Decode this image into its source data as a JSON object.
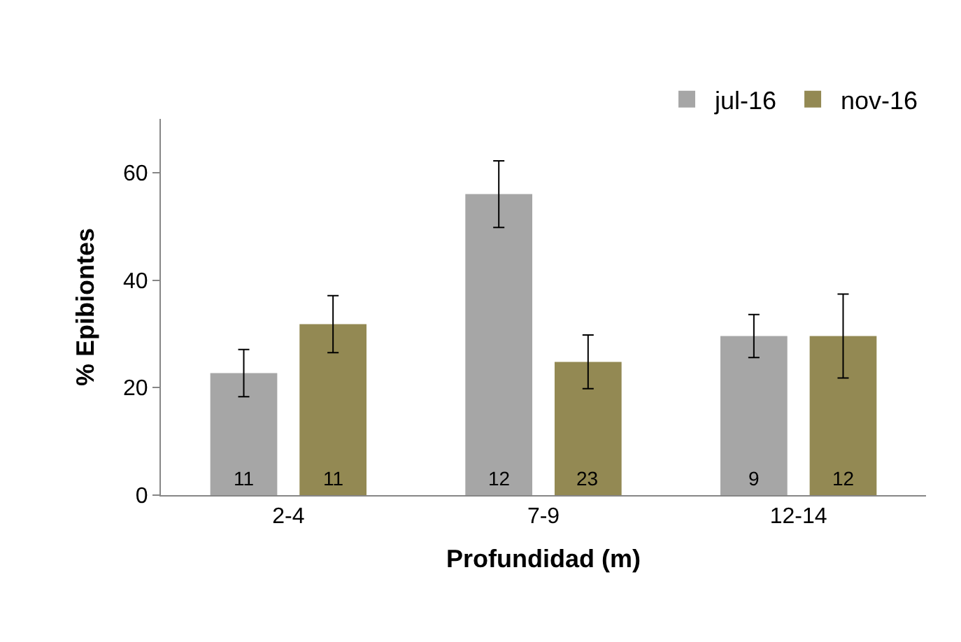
{
  "chart_data": {
    "type": "bar",
    "xlabel": "Profundidad (m)",
    "ylabel": "% Epibiontes",
    "categories": [
      "2-4",
      "7-9",
      "12-14"
    ],
    "series": [
      {
        "name": "jul-16",
        "color": "#a6a6a6",
        "values": [
          22.7,
          56,
          29.6
        ],
        "errors": [
          4.4,
          6.2,
          4
        ]
      },
      {
        "name": "nov-16",
        "color": "#938953",
        "values": [
          31.8,
          24.8,
          29.6
        ],
        "errors": [
          5.3,
          5,
          7.8
        ]
      }
    ],
    "annotations": [
      "11",
      "11",
      "12",
      "23",
      "9",
      "12"
    ],
    "ylim": [
      0,
      70
    ],
    "yticks": [
      0,
      20,
      40,
      60
    ],
    "legend": "top right"
  }
}
